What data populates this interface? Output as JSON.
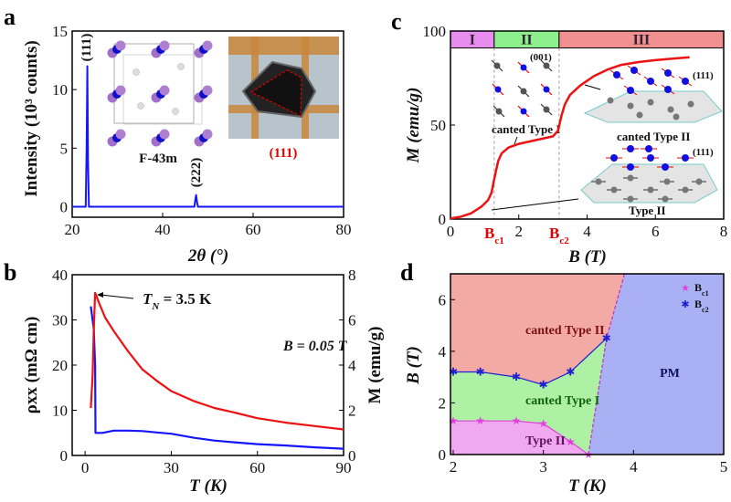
{
  "figure": {
    "panel_letters": [
      "a",
      "b",
      "c",
      "d"
    ]
  },
  "chart_data": [
    {
      "id": "a",
      "type": "line",
      "xlabel": "2θ (°)",
      "ylabel": "Intensity (10³ counts)",
      "xlim": [
        20,
        80
      ],
      "ylim": [
        -0.9,
        15
      ],
      "xticks": [
        20,
        40,
        60,
        80
      ],
      "yticks": [
        0,
        5,
        10,
        15
      ],
      "series": [
        {
          "color": "#1515ff",
          "x": [
            20,
            23.0,
            23.2,
            23.35,
            23.5,
            23.7,
            47.0,
            47.2,
            47.4,
            47.6,
            47.8,
            80
          ],
          "y": [
            0,
            0,
            5,
            12,
            4,
            0,
            0,
            0.5,
            1.0,
            0.4,
            0,
            0
          ]
        }
      ],
      "annotations": {
        "peak1": "(111)",
        "peak2": "(222)",
        "space_group": "F-43m",
        "facet": "(111)"
      },
      "annotation_colors": {
        "facet": "#e00000"
      }
    },
    {
      "id": "b",
      "type": "line",
      "xlabel": "T (K)",
      "ylabel_left": "ρxx (mΩ cm)",
      "ylabel_right": "M (emu/g)",
      "xlim": [
        -4.5,
        90
      ],
      "ylim_left": [
        0,
        40
      ],
      "ylim_right": [
        0,
        8
      ],
      "xticks": [
        0,
        30,
        60,
        90
      ],
      "yticks_left": [
        0,
        10,
        20,
        30,
        40
      ],
      "yticks_right": [
        0,
        2,
        4,
        6,
        8
      ],
      "series": [
        {
          "axis": "left",
          "color": "#1515ff",
          "x": [
            2,
            3.0,
            3.5,
            3.6,
            6,
            10,
            15,
            20,
            25,
            30,
            38,
            45,
            52,
            60,
            70,
            80,
            90
          ],
          "y": [
            33,
            28,
            20,
            5,
            5.0,
            5.5,
            5.5,
            5.4,
            5.1,
            4.8,
            3.9,
            3.3,
            2.9,
            2.5,
            2.2,
            1.8,
            1.5
          ]
        },
        {
          "axis": "right",
          "color": "#ee1111",
          "x": [
            2,
            2.6,
            3.0,
            3.5,
            5,
            7,
            10,
            15,
            20,
            25,
            30,
            38,
            45,
            52,
            60,
            70,
            80,
            90
          ],
          "y": [
            2.1,
            3.5,
            5.5,
            7.2,
            6.7,
            6.1,
            5.5,
            4.6,
            3.8,
            3.3,
            2.85,
            2.4,
            2.1,
            1.9,
            1.65,
            1.45,
            1.3,
            1.15
          ]
        }
      ],
      "annotations": {
        "tn_label": "T",
        "tn_sub": "N",
        "tn_value": " = 3.5 K",
        "field": "B = 0.05 T"
      }
    },
    {
      "id": "c",
      "type": "line",
      "xlabel": "B (T)",
      "ylabel": "M (emu/g)",
      "xlim": [
        0,
        8
      ],
      "ylim": [
        0,
        100
      ],
      "xticks": [
        0,
        2,
        4,
        6,
        8
      ],
      "yticks": [
        0,
        50,
        100
      ],
      "critical_fields": [
        {
          "label": "B",
          "sub": "c1",
          "value": 1.28
        },
        {
          "label": "B",
          "sub": "c2",
          "value": 3.18
        }
      ],
      "phases": [
        {
          "label": "I",
          "from": 0,
          "to": 1.28,
          "color": "#e88cf0"
        },
        {
          "label": "II",
          "from": 1.28,
          "to": 3.18,
          "color": "#8df08d"
        },
        {
          "label": "III",
          "from": 3.18,
          "to": 8,
          "color": "#f09090"
        }
      ],
      "series": [
        {
          "color": "#ee1111",
          "x": [
            0,
            0.3,
            0.6,
            0.9,
            1.1,
            1.2,
            1.3,
            1.4,
            1.5,
            1.7,
            2.0,
            2.5,
            3.0,
            3.15,
            3.25,
            3.35,
            3.5,
            3.8,
            4.2,
            4.6,
            5.0,
            5.5,
            6.0,
            6.5,
            7.0
          ],
          "y": [
            0.3,
            1.2,
            3,
            6.5,
            10,
            14,
            23,
            31,
            35,
            38,
            40,
            42,
            44,
            47,
            55,
            61,
            66,
            71,
            76,
            79.5,
            82,
            83.5,
            84.5,
            85.3,
            86
          ]
        }
      ],
      "annotations": {
        "inset_001": "(001)",
        "canted_type1": "canted Type I",
        "inset_111_top": "(111)",
        "canted_type2": "canted Type II",
        "inset_111_bottom": "(111)",
        "type2": "Type II"
      }
    },
    {
      "id": "d",
      "type": "scatter",
      "xlabel": "T (K)",
      "ylabel": "B (T)",
      "xlim": [
        2,
        5
      ],
      "ylim": [
        0,
        7
      ],
      "xticks": [
        2,
        3,
        4,
        5
      ],
      "yticks": [
        0,
        2,
        4,
        6
      ],
      "legend_position": "top-right",
      "series": [
        {
          "name": "B",
          "sub": "c1",
          "color": "#e040e0",
          "marker": "star",
          "x": [
            2.0,
            2.3,
            2.7,
            3.0,
            3.3,
            3.5
          ],
          "y": [
            1.3,
            1.3,
            1.3,
            1.2,
            0.5,
            0.0
          ]
        },
        {
          "name": "B",
          "sub": "c2",
          "color": "#2020d0",
          "marker": "asterisk",
          "x": [
            2.0,
            2.3,
            2.7,
            3.0,
            3.3,
            3.7
          ],
          "y": [
            3.2,
            3.2,
            3.0,
            2.7,
            3.2,
            4.5
          ]
        }
      ],
      "pm_boundary": {
        "x": [
          3.5,
          3.7,
          3.9
        ],
        "y": [
          0,
          4.5,
          7
        ]
      },
      "regions": [
        {
          "label": "canted Type II",
          "color": "#f4aaa4",
          "text_color": "#7a1010"
        },
        {
          "label": "canted Type I",
          "color": "#aef0a4",
          "text_color": "#106010"
        },
        {
          "label": "Type II",
          "color": "#f0a8f0",
          "text_color": "#601060"
        },
        {
          "label": "PM",
          "color": "#aab0f4",
          "text_color": "#101060"
        }
      ]
    }
  ]
}
